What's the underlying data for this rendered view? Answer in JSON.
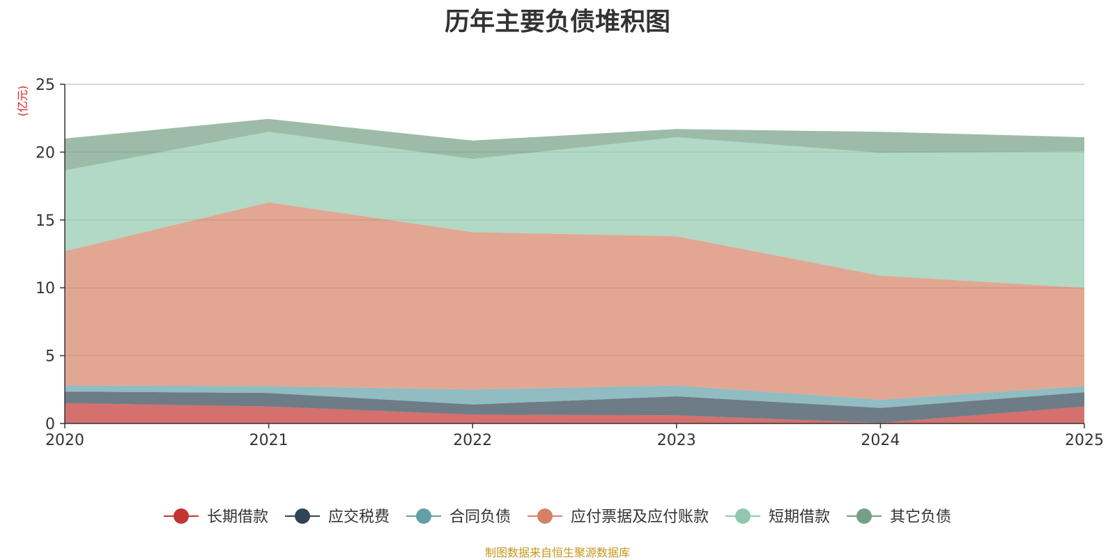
{
  "chart_data": {
    "type": "area",
    "stacked": true,
    "title": "历年主要负债堆积图",
    "ylabel": "(亿元)",
    "xlabel": "",
    "categories": [
      "2020",
      "2021",
      "2022",
      "2023",
      "2024",
      "2025"
    ],
    "ylim": [
      0,
      25
    ],
    "yticks": [
      0,
      5,
      10,
      15,
      20,
      25
    ],
    "grid": true,
    "legend_position": "bottom",
    "series": [
      {
        "name": "长期借款",
        "color": "#c23531",
        "values": [
          1.5,
          1.25,
          0.65,
          0.6,
          0.05,
          1.25
        ]
      },
      {
        "name": "应交税费",
        "color": "#2f4554",
        "values": [
          0.85,
          1.0,
          0.75,
          1.4,
          1.1,
          1.05
        ]
      },
      {
        "name": "合同负债",
        "color": "#61a0a8",
        "values": [
          0.45,
          0.5,
          1.1,
          0.8,
          0.6,
          0.45
        ]
      },
      {
        "name": "应付票据及应付账款",
        "color": "#d48265",
        "values": [
          9.9,
          13.55,
          11.6,
          11.0,
          9.15,
          7.25
        ]
      },
      {
        "name": "短期借款",
        "color": "#91c7ae",
        "values": [
          5.95,
          5.2,
          5.4,
          7.3,
          9.05,
          10.05
        ]
      },
      {
        "name": "其它负债",
        "color": "#749f83",
        "values": [
          2.35,
          0.95,
          1.35,
          0.6,
          1.55,
          1.05
        ]
      }
    ]
  },
  "footer": {
    "source": "制图数据来自恒生聚源数据库"
  }
}
